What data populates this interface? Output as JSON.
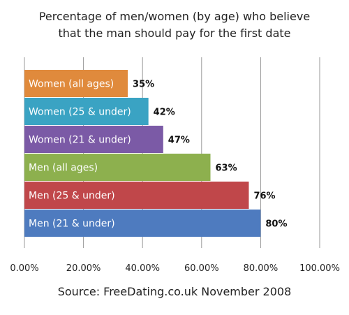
{
  "chart_data": {
    "type": "bar",
    "orientation": "horizontal",
    "title": "Percentage of men/women (by age) who believe",
    "subtitle": "that the man should pay for the first date",
    "categories": [
      "Women (all ages)",
      "Women (25 & under)",
      "Women (21 & under)",
      "Men (all ages)",
      "Men (25 & under)",
      "Men (21 & under)"
    ],
    "values": [
      35,
      42,
      47,
      63,
      76,
      80
    ],
    "value_labels": [
      "35%",
      "42%",
      "47%",
      "63%",
      "76%",
      "80%"
    ],
    "colors": [
      "#e08a3c",
      "#3aa3c3",
      "#7b5aa6",
      "#8db04e",
      "#c0474a",
      "#4e7bbf"
    ],
    "xlim": [
      0,
      100
    ],
    "x_ticks": [
      0,
      20,
      40,
      60,
      80,
      100
    ],
    "x_tick_labels": [
      "0.00%",
      "20.00%",
      "40.00%",
      "60.00%",
      "80.00%",
      "100.00%"
    ],
    "xlabel": "",
    "ylabel": "",
    "grid": "vertical",
    "legend": "none",
    "source": "Source: FreeDating.co.uk November 2008"
  }
}
